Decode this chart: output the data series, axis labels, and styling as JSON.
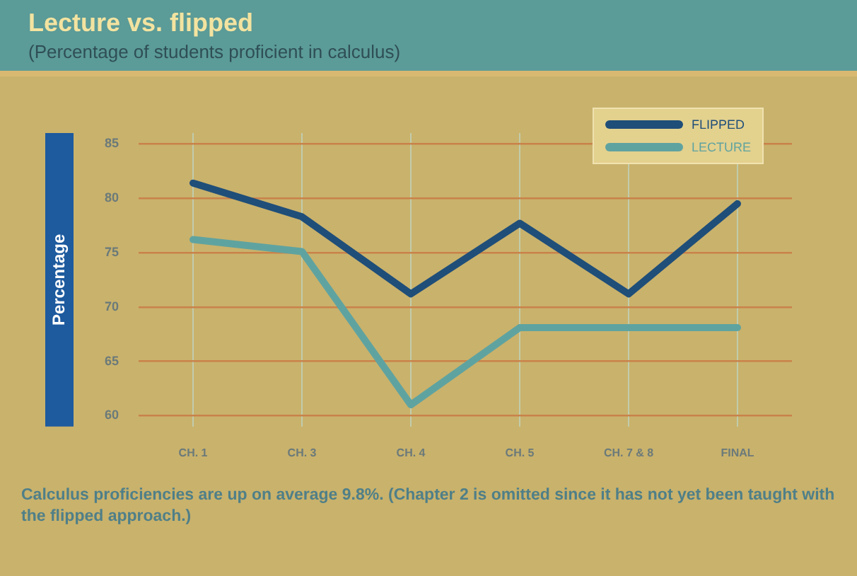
{
  "chart_data": {
    "type": "line",
    "title": "Lecture vs. flipped",
    "subtitle": "(Percentage of students proficient in calculus)",
    "ylabel": "Percentage",
    "categories": [
      "CH. 1",
      "CH. 3",
      "CH. 4",
      "CH. 5",
      "CH. 7 & 8",
      "FINAL"
    ],
    "series": [
      {
        "name": "FLIPPED",
        "color": "#1f4e79",
        "values": [
          81.4,
          78.3,
          71.2,
          77.7,
          71.2,
          79.5
        ]
      },
      {
        "name": "LECTURE",
        "color": "#5fa3a0",
        "values": [
          76.2,
          75.1,
          61.0,
          68.1,
          68.1,
          68.1
        ]
      }
    ],
    "ylim": [
      59,
      86
    ],
    "yticks": [
      60,
      65,
      70,
      75,
      80,
      85
    ],
    "grid": true,
    "legend": "top right",
    "marker": "none",
    "annotations": [
      "Calculus proficiencies are up on average 9.8%. (Chapter 2 is omitted since it has not yet been taught with the flipped approach.)"
    ]
  }
}
